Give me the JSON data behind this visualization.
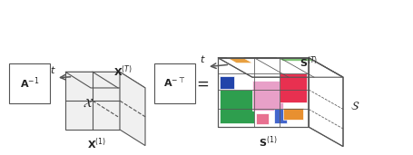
{
  "bg_color": "#f5f5f5",
  "line_color": "#555555",
  "text_color": "#222222",
  "block_colors": {
    "green": "#2e9e4e",
    "pink_light": "#e8a0c8",
    "red": "#e83050",
    "blue_dark": "#2244aa",
    "blue_mid": "#4466cc",
    "orange": "#e89030",
    "orange2": "#e8a040",
    "green_light": "#80c878",
    "pink2": "#e87090"
  }
}
